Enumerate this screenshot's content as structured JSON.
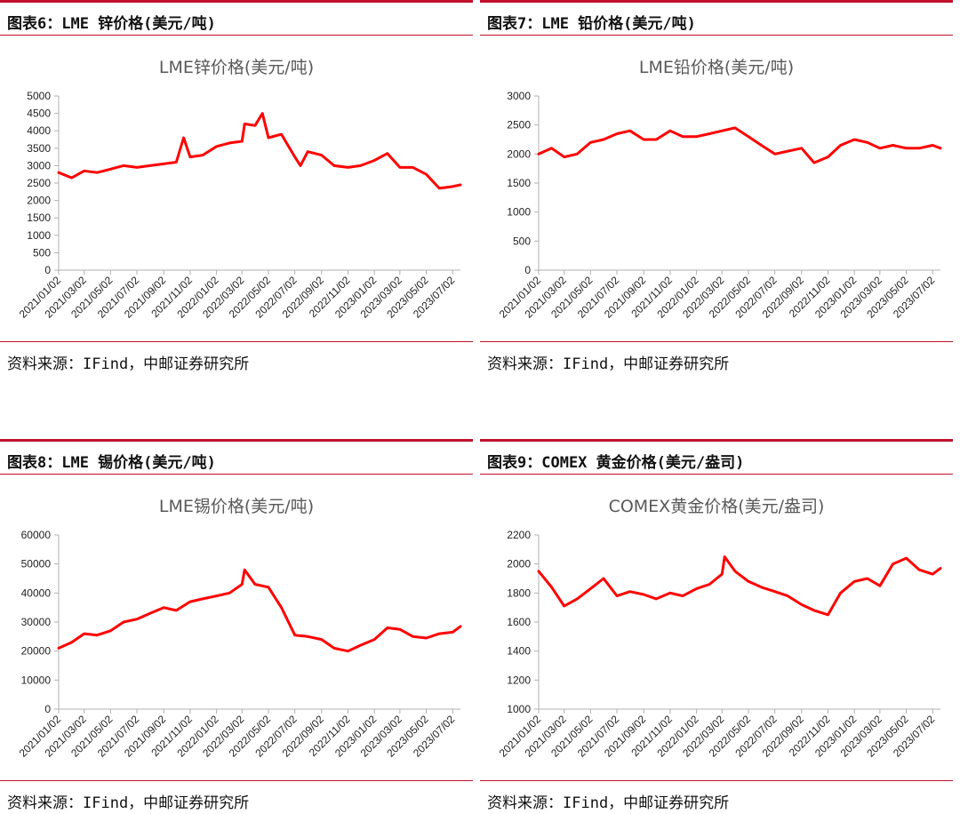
{
  "panels": [
    {
      "figure_label": "图表6：LME 锌价格(美元/吨)",
      "source": "资料来源：IFind，中邮证券研究所"
    },
    {
      "figure_label": "图表7：LME 铅价格(美元/吨)",
      "source": "资料来源：IFind，中邮证券研究所"
    },
    {
      "figure_label": "图表8：LME 锡价格(美元/吨)",
      "source": "资料来源：IFind，中邮证券研究所"
    },
    {
      "figure_label": "图表9：COMEX 黄金价格(美元/盎司)",
      "source": "资料来源：IFind，中邮证券研究所"
    }
  ],
  "line_color": "#ff0000",
  "chart_data": [
    {
      "type": "line",
      "title": "LME锌价格(美元/吨)",
      "ylim": [
        0,
        5000
      ],
      "yticks": [
        0,
        500,
        1000,
        1500,
        2000,
        2500,
        3000,
        3500,
        4000,
        4500,
        5000
      ],
      "xticks": [
        "2021/01/02",
        "2021/03/02",
        "2021/05/02",
        "2021/07/02",
        "2021/09/02",
        "2021/11/02",
        "2022/01/02",
        "2022/03/02",
        "2022/05/02",
        "2022/07/02",
        "2022/09/02",
        "2022/11/02",
        "2023/01/02",
        "2023/03/02",
        "2023/05/02",
        "2023/07/02"
      ],
      "grid": false,
      "x": [
        "2021/01/02",
        "2021/02/01",
        "2021/03/02",
        "2021/04/01",
        "2021/05/02",
        "2021/06/01",
        "2021/07/02",
        "2021/08/01",
        "2021/09/02",
        "2021/10/01",
        "2021/10/18",
        "2021/11/02",
        "2021/12/01",
        "2022/01/02",
        "2022/02/01",
        "2022/03/02",
        "2022/03/08",
        "2022/04/01",
        "2022/04/18",
        "2022/05/02",
        "2022/06/01",
        "2022/07/02",
        "2022/07/15",
        "2022/08/01",
        "2022/09/02",
        "2022/10/01",
        "2022/11/02",
        "2022/12/01",
        "2023/01/02",
        "2023/02/01",
        "2023/03/02",
        "2023/04/01",
        "2023/05/02",
        "2023/06/01",
        "2023/07/02",
        "2023/07/20"
      ],
      "values": [
        2800,
        2650,
        2850,
        2800,
        2900,
        3000,
        2950,
        3000,
        3050,
        3100,
        3800,
        3250,
        3300,
        3550,
        3650,
        3700,
        4200,
        4150,
        4500,
        3800,
        3900,
        3250,
        3000,
        3400,
        3300,
        3000,
        2950,
        3000,
        3150,
        3350,
        2950,
        2950,
        2750,
        2350,
        2400,
        2450
      ]
    },
    {
      "type": "line",
      "title": "LME铅价格(美元/吨)",
      "ylim": [
        0,
        3000
      ],
      "yticks": [
        0,
        500,
        1000,
        1500,
        2000,
        2500,
        3000
      ],
      "xticks": [
        "2021/01/02",
        "2021/03/02",
        "2021/05/02",
        "2021/07/02",
        "2021/09/02",
        "2021/11/02",
        "2022/01/02",
        "2022/03/02",
        "2022/05/02",
        "2022/07/02",
        "2022/09/02",
        "2022/11/02",
        "2023/01/02",
        "2023/03/02",
        "2023/05/02",
        "2023/07/02"
      ],
      "grid": false,
      "x": [
        "2021/01/02",
        "2021/02/01",
        "2021/03/02",
        "2021/04/01",
        "2021/05/02",
        "2021/06/01",
        "2021/07/02",
        "2021/08/01",
        "2021/09/02",
        "2021/10/01",
        "2021/11/02",
        "2021/12/01",
        "2022/01/02",
        "2022/02/01",
        "2022/03/02",
        "2022/04/01",
        "2022/05/02",
        "2022/06/01",
        "2022/07/02",
        "2022/08/01",
        "2022/09/02",
        "2022/10/01",
        "2022/11/02",
        "2022/12/01",
        "2023/01/02",
        "2023/02/01",
        "2023/03/02",
        "2023/04/01",
        "2023/05/02",
        "2023/06/01",
        "2023/07/02",
        "2023/07/20"
      ],
      "values": [
        2000,
        2100,
        1950,
        2000,
        2200,
        2250,
        2350,
        2400,
        2250,
        2250,
        2400,
        2300,
        2300,
        2350,
        2400,
        2450,
        2300,
        2150,
        2000,
        2050,
        2100,
        1850,
        1950,
        2150,
        2250,
        2200,
        2100,
        2150,
        2100,
        2100,
        2150,
        2100
      ]
    },
    {
      "type": "line",
      "title": "LME锡价格(美元/吨)",
      "ylim": [
        0,
        60000
      ],
      "yticks": [
        0,
        10000,
        20000,
        30000,
        40000,
        50000,
        60000
      ],
      "xticks": [
        "2021/01/02",
        "2021/03/02",
        "2021/05/02",
        "2021/07/02",
        "2021/09/02",
        "2021/11/02",
        "2022/01/02",
        "2022/03/02",
        "2022/05/02",
        "2022/07/02",
        "2022/09/02",
        "2022/11/02",
        "2023/01/02",
        "2023/03/02",
        "2023/05/02",
        "2023/07/02"
      ],
      "grid": false,
      "x": [
        "2021/01/02",
        "2021/02/01",
        "2021/03/02",
        "2021/04/01",
        "2021/05/02",
        "2021/06/01",
        "2021/07/02",
        "2021/08/01",
        "2021/09/02",
        "2021/10/01",
        "2021/11/02",
        "2021/12/01",
        "2022/01/02",
        "2022/02/01",
        "2022/03/02",
        "2022/03/08",
        "2022/04/01",
        "2022/05/02",
        "2022/06/01",
        "2022/07/02",
        "2022/08/01",
        "2022/09/02",
        "2022/10/01",
        "2022/11/02",
        "2022/12/01",
        "2023/01/02",
        "2023/02/01",
        "2023/03/02",
        "2023/04/01",
        "2023/05/02",
        "2023/06/01",
        "2023/07/02",
        "2023/07/20"
      ],
      "values": [
        21000,
        23000,
        26000,
        25500,
        27000,
        30000,
        31000,
        33000,
        35000,
        34000,
        37000,
        38000,
        39000,
        40000,
        43000,
        48000,
        43000,
        42000,
        35000,
        25500,
        25000,
        24000,
        21000,
        20000,
        22000,
        24000,
        28000,
        27500,
        25000,
        24500,
        26000,
        26500,
        28500
      ]
    },
    {
      "type": "line",
      "title": "COMEX黄金价格(美元/盎司)",
      "ylim": [
        1000,
        2200
      ],
      "yticks": [
        1000,
        1200,
        1400,
        1600,
        1800,
        2000,
        2200
      ],
      "xticks": [
        "2021/01/02",
        "2021/03/02",
        "2021/05/02",
        "2021/07/02",
        "2021/09/02",
        "2021/11/02",
        "2022/01/02",
        "2022/03/02",
        "2022/05/02",
        "2022/07/02",
        "2022/09/02",
        "2022/11/02",
        "2023/01/02",
        "2023/03/02",
        "2023/05/02",
        "2023/07/02"
      ],
      "grid": false,
      "x": [
        "2021/01/02",
        "2021/02/01",
        "2021/03/02",
        "2021/04/01",
        "2021/05/02",
        "2021/06/01",
        "2021/07/02",
        "2021/08/01",
        "2021/09/02",
        "2021/10/01",
        "2021/11/02",
        "2021/12/01",
        "2022/01/02",
        "2022/02/01",
        "2022/03/02",
        "2022/03/08",
        "2022/04/01",
        "2022/05/02",
        "2022/06/01",
        "2022/07/02",
        "2022/08/01",
        "2022/09/02",
        "2022/10/01",
        "2022/11/02",
        "2022/12/01",
        "2023/01/02",
        "2023/02/01",
        "2023/03/02",
        "2023/04/01",
        "2023/05/02",
        "2023/06/01",
        "2023/07/02",
        "2023/07/20"
      ],
      "values": [
        1950,
        1840,
        1710,
        1760,
        1830,
        1900,
        1780,
        1810,
        1790,
        1760,
        1800,
        1780,
        1830,
        1860,
        1930,
        2050,
        1950,
        1880,
        1840,
        1810,
        1780,
        1720,
        1680,
        1650,
        1800,
        1880,
        1900,
        1850,
        2000,
        2040,
        1960,
        1930,
        1970
      ]
    }
  ]
}
